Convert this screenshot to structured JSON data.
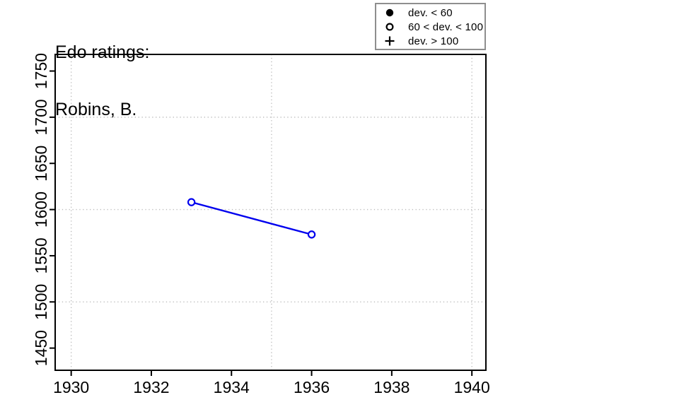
{
  "title": {
    "line1": "Edo ratings:",
    "line2": "Robins, B."
  },
  "legend": {
    "items": [
      {
        "symbol": "filled-circle",
        "label": "dev. < 60"
      },
      {
        "symbol": "open-circle",
        "label": "60 < dev. < 100"
      },
      {
        "symbol": "plus",
        "label": "dev. > 100"
      }
    ],
    "position": "top-right"
  },
  "colors": {
    "series": "#0000EE",
    "grid": "#bdbdbd",
    "axis": "#000000",
    "background": "#ffffff",
    "legend_border": "#8e8e8e"
  },
  "chart_data": {
    "type": "line",
    "title": "Edo ratings: Robins, B.",
    "xlabel": "",
    "ylabel": "",
    "xlim": [
      1929.6,
      1940.35
    ],
    "ylim": [
      1426,
      1768
    ],
    "x_ticks": [
      1930,
      1932,
      1934,
      1936,
      1938,
      1940
    ],
    "y_ticks": [
      1450,
      1500,
      1550,
      1600,
      1650,
      1700,
      1750
    ],
    "x_gridlines": [
      1930,
      1935,
      1940
    ],
    "y_gridlines": [
      1500,
      1600,
      1700
    ],
    "grid_style": "dotted",
    "legend_position": "top-right",
    "series": [
      {
        "name": "rating",
        "marker": "open-circle",
        "color": "#0000EE",
        "points": [
          {
            "x": 1933,
            "y": 1608
          },
          {
            "x": 1936,
            "y": 1573
          }
        ]
      }
    ]
  }
}
